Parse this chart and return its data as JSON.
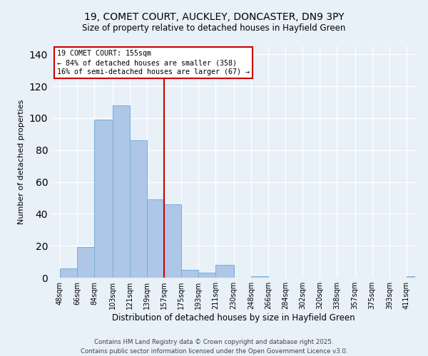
{
  "title_line1": "19, COMET COURT, AUCKLEY, DONCASTER, DN9 3PY",
  "title_line2": "Size of property relative to detached houses in Hayfield Green",
  "xlabel": "Distribution of detached houses by size in Hayfield Green",
  "ylabel": "Number of detached properties",
  "bar_color": "#aec6e8",
  "bar_edge_color": "#7aafd4",
  "vline_color": "#cc0000",
  "vline_x": 157,
  "annotation_text": "19 COMET COURT: 155sqm\n← 84% of detached houses are smaller (358)\n16% of semi-detached houses are larger (67) →",
  "categories": [
    "48sqm",
    "66sqm",
    "84sqm",
    "103sqm",
    "121sqm",
    "139sqm",
    "157sqm",
    "175sqm",
    "193sqm",
    "211sqm",
    "230sqm",
    "248sqm",
    "266sqm",
    "284sqm",
    "302sqm",
    "320sqm",
    "338sqm",
    "357sqm",
    "375sqm",
    "393sqm",
    "411sqm"
  ],
  "bin_edges": [
    48,
    66,
    84,
    103,
    121,
    139,
    157,
    175,
    193,
    211,
    230,
    248,
    266,
    284,
    302,
    320,
    338,
    357,
    375,
    393,
    411
  ],
  "values": [
    6,
    19,
    99,
    108,
    86,
    49,
    46,
    5,
    3,
    8,
    0,
    1,
    0,
    0,
    0,
    0,
    0,
    0,
    0,
    0,
    1
  ],
  "ylim": [
    0,
    145
  ],
  "yticks": [
    0,
    20,
    40,
    60,
    80,
    100,
    120,
    140
  ],
  "background_color": "#e8f0f8",
  "grid_color": "#ffffff",
  "footer_line1": "Contains HM Land Registry data © Crown copyright and database right 2025.",
  "footer_line2": "Contains public sector information licensed under the Open Government Licence v3.0."
}
